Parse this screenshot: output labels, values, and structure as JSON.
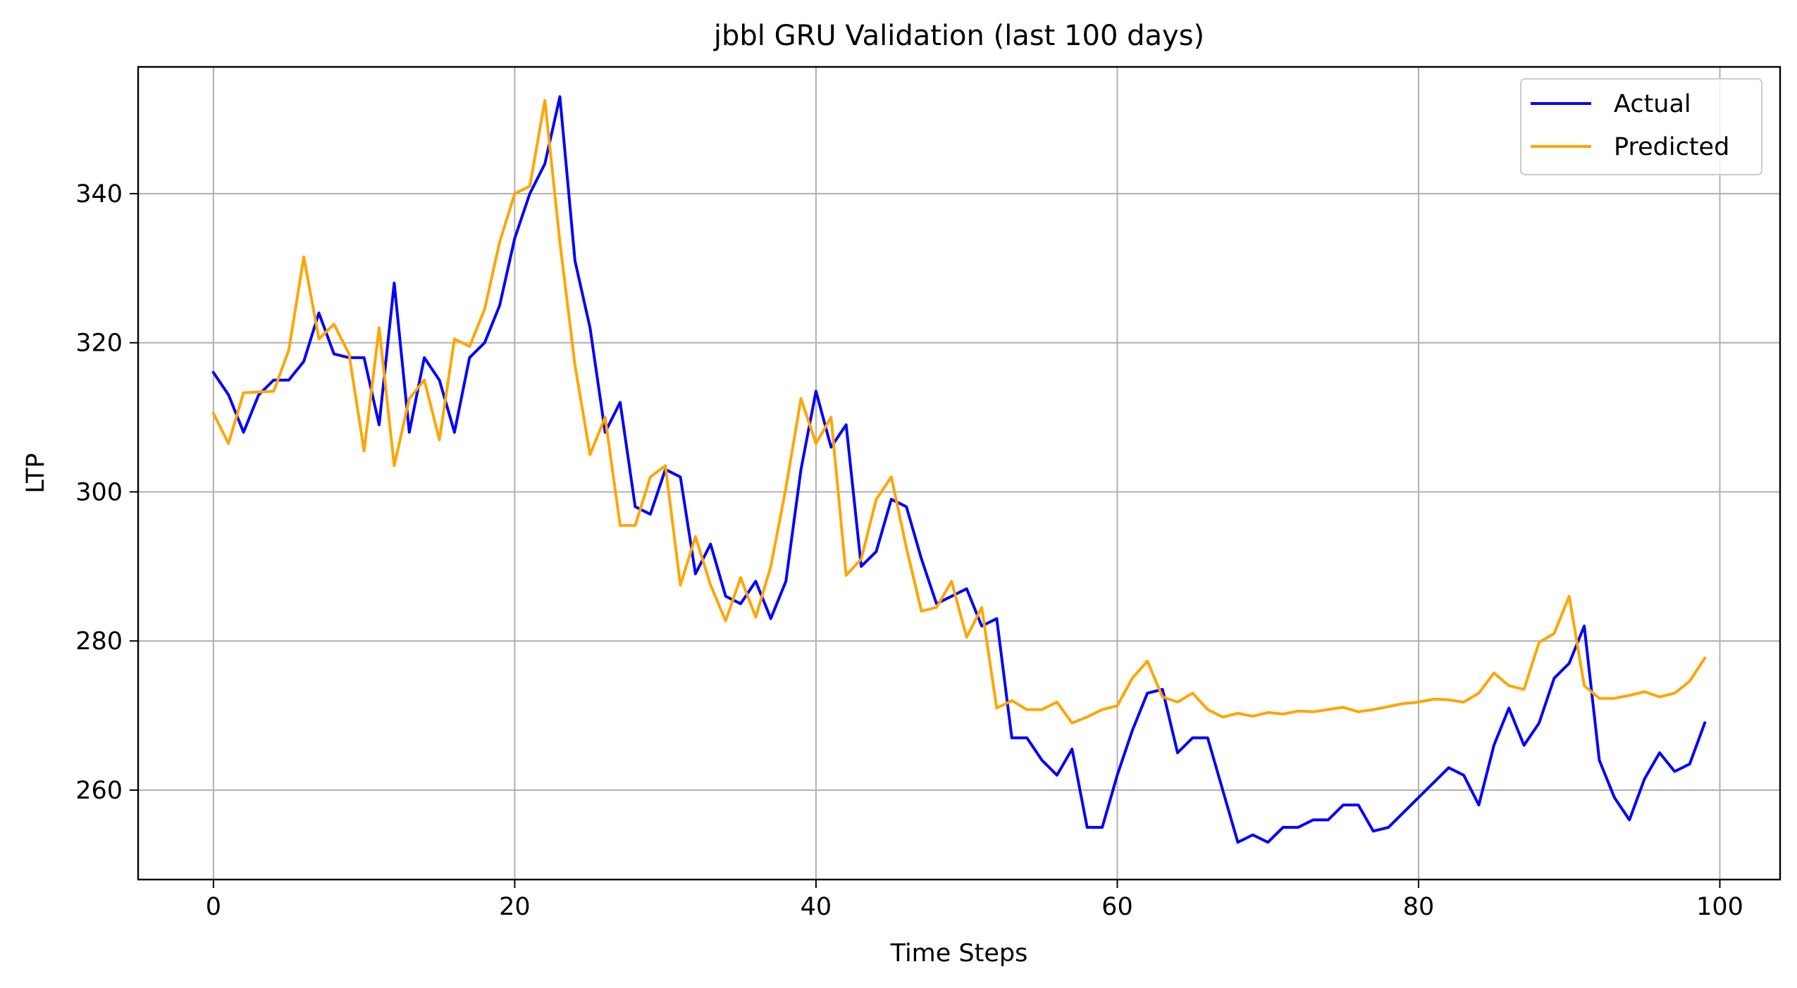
{
  "chart_data": {
    "type": "line",
    "title": "jbbl GRU Validation (last 100 days)",
    "xlabel": "Time Steps",
    "ylabel": "LTP",
    "xlim": [
      -5,
      104
    ],
    "ylim": [
      248,
      357
    ],
    "x_ticks": [
      0,
      20,
      40,
      60,
      80,
      100
    ],
    "y_ticks": [
      260,
      280,
      300,
      320,
      340
    ],
    "grid": true,
    "legend_position": "top-right",
    "series": [
      {
        "name": "Actual",
        "color": "#0000ff",
        "x_start": 0,
        "values": [
          316,
          313,
          308,
          313,
          315,
          315,
          317.5,
          324,
          318.5,
          318,
          318,
          309,
          328,
          308,
          318,
          315,
          308,
          318,
          320,
          325,
          334,
          340,
          344,
          353,
          331,
          322,
          308,
          312,
          298,
          297,
          303,
          302,
          289,
          293,
          286,
          285,
          288,
          283,
          288,
          303,
          313.5,
          306,
          309,
          290,
          292,
          299,
          298,
          291,
          285,
          286,
          287,
          282,
          283,
          267,
          267,
          264,
          262,
          265.5,
          255,
          255,
          262,
          268,
          273,
          273.5,
          265,
          267,
          267,
          260,
          253,
          254,
          253,
          255,
          255,
          256,
          256,
          258,
          258,
          254.5,
          255,
          257,
          259,
          261,
          263,
          262,
          258,
          266,
          271,
          266,
          269,
          275,
          277,
          282,
          264,
          259,
          256,
          261.5,
          265,
          262.5,
          263.5,
          269
        ]
      },
      {
        "name": "Predicted",
        "color": "#ffa500",
        "x_start": 0,
        "values": [
          310.5,
          306.5,
          313.3,
          313.4,
          313.5,
          319,
          331.5,
          320.5,
          322.5,
          318.5,
          305.5,
          322,
          303.5,
          312.5,
          315,
          307,
          320.5,
          319.5,
          324.5,
          333.5,
          340,
          341,
          352.5,
          333.5,
          317,
          305,
          310,
          295.5,
          295.5,
          302,
          303.5,
          287.5,
          294,
          287.5,
          282.7,
          288.5,
          283.2,
          290,
          300.5,
          312.5,
          306.5,
          310,
          288.8,
          291,
          299,
          302,
          292.5,
          284,
          284.5,
          288,
          280.5,
          284.5,
          271,
          272,
          270.8,
          270.8,
          271.8,
          269,
          269.8,
          270.8,
          271.3,
          275,
          277.3,
          272.5,
          271.8,
          273,
          270.8,
          269.8,
          270.3,
          269.9,
          270.4,
          270.2,
          270.6,
          270.5,
          270.8,
          271.1,
          270.5,
          270.8,
          271.2,
          271.6,
          271.8,
          272.2,
          272.1,
          271.8,
          273,
          275.7,
          274,
          273.5,
          279.8,
          281,
          286,
          274,
          272.3,
          272.3,
          272.7,
          273.2,
          272.5,
          273,
          274.6,
          277.7
        ]
      }
    ]
  }
}
